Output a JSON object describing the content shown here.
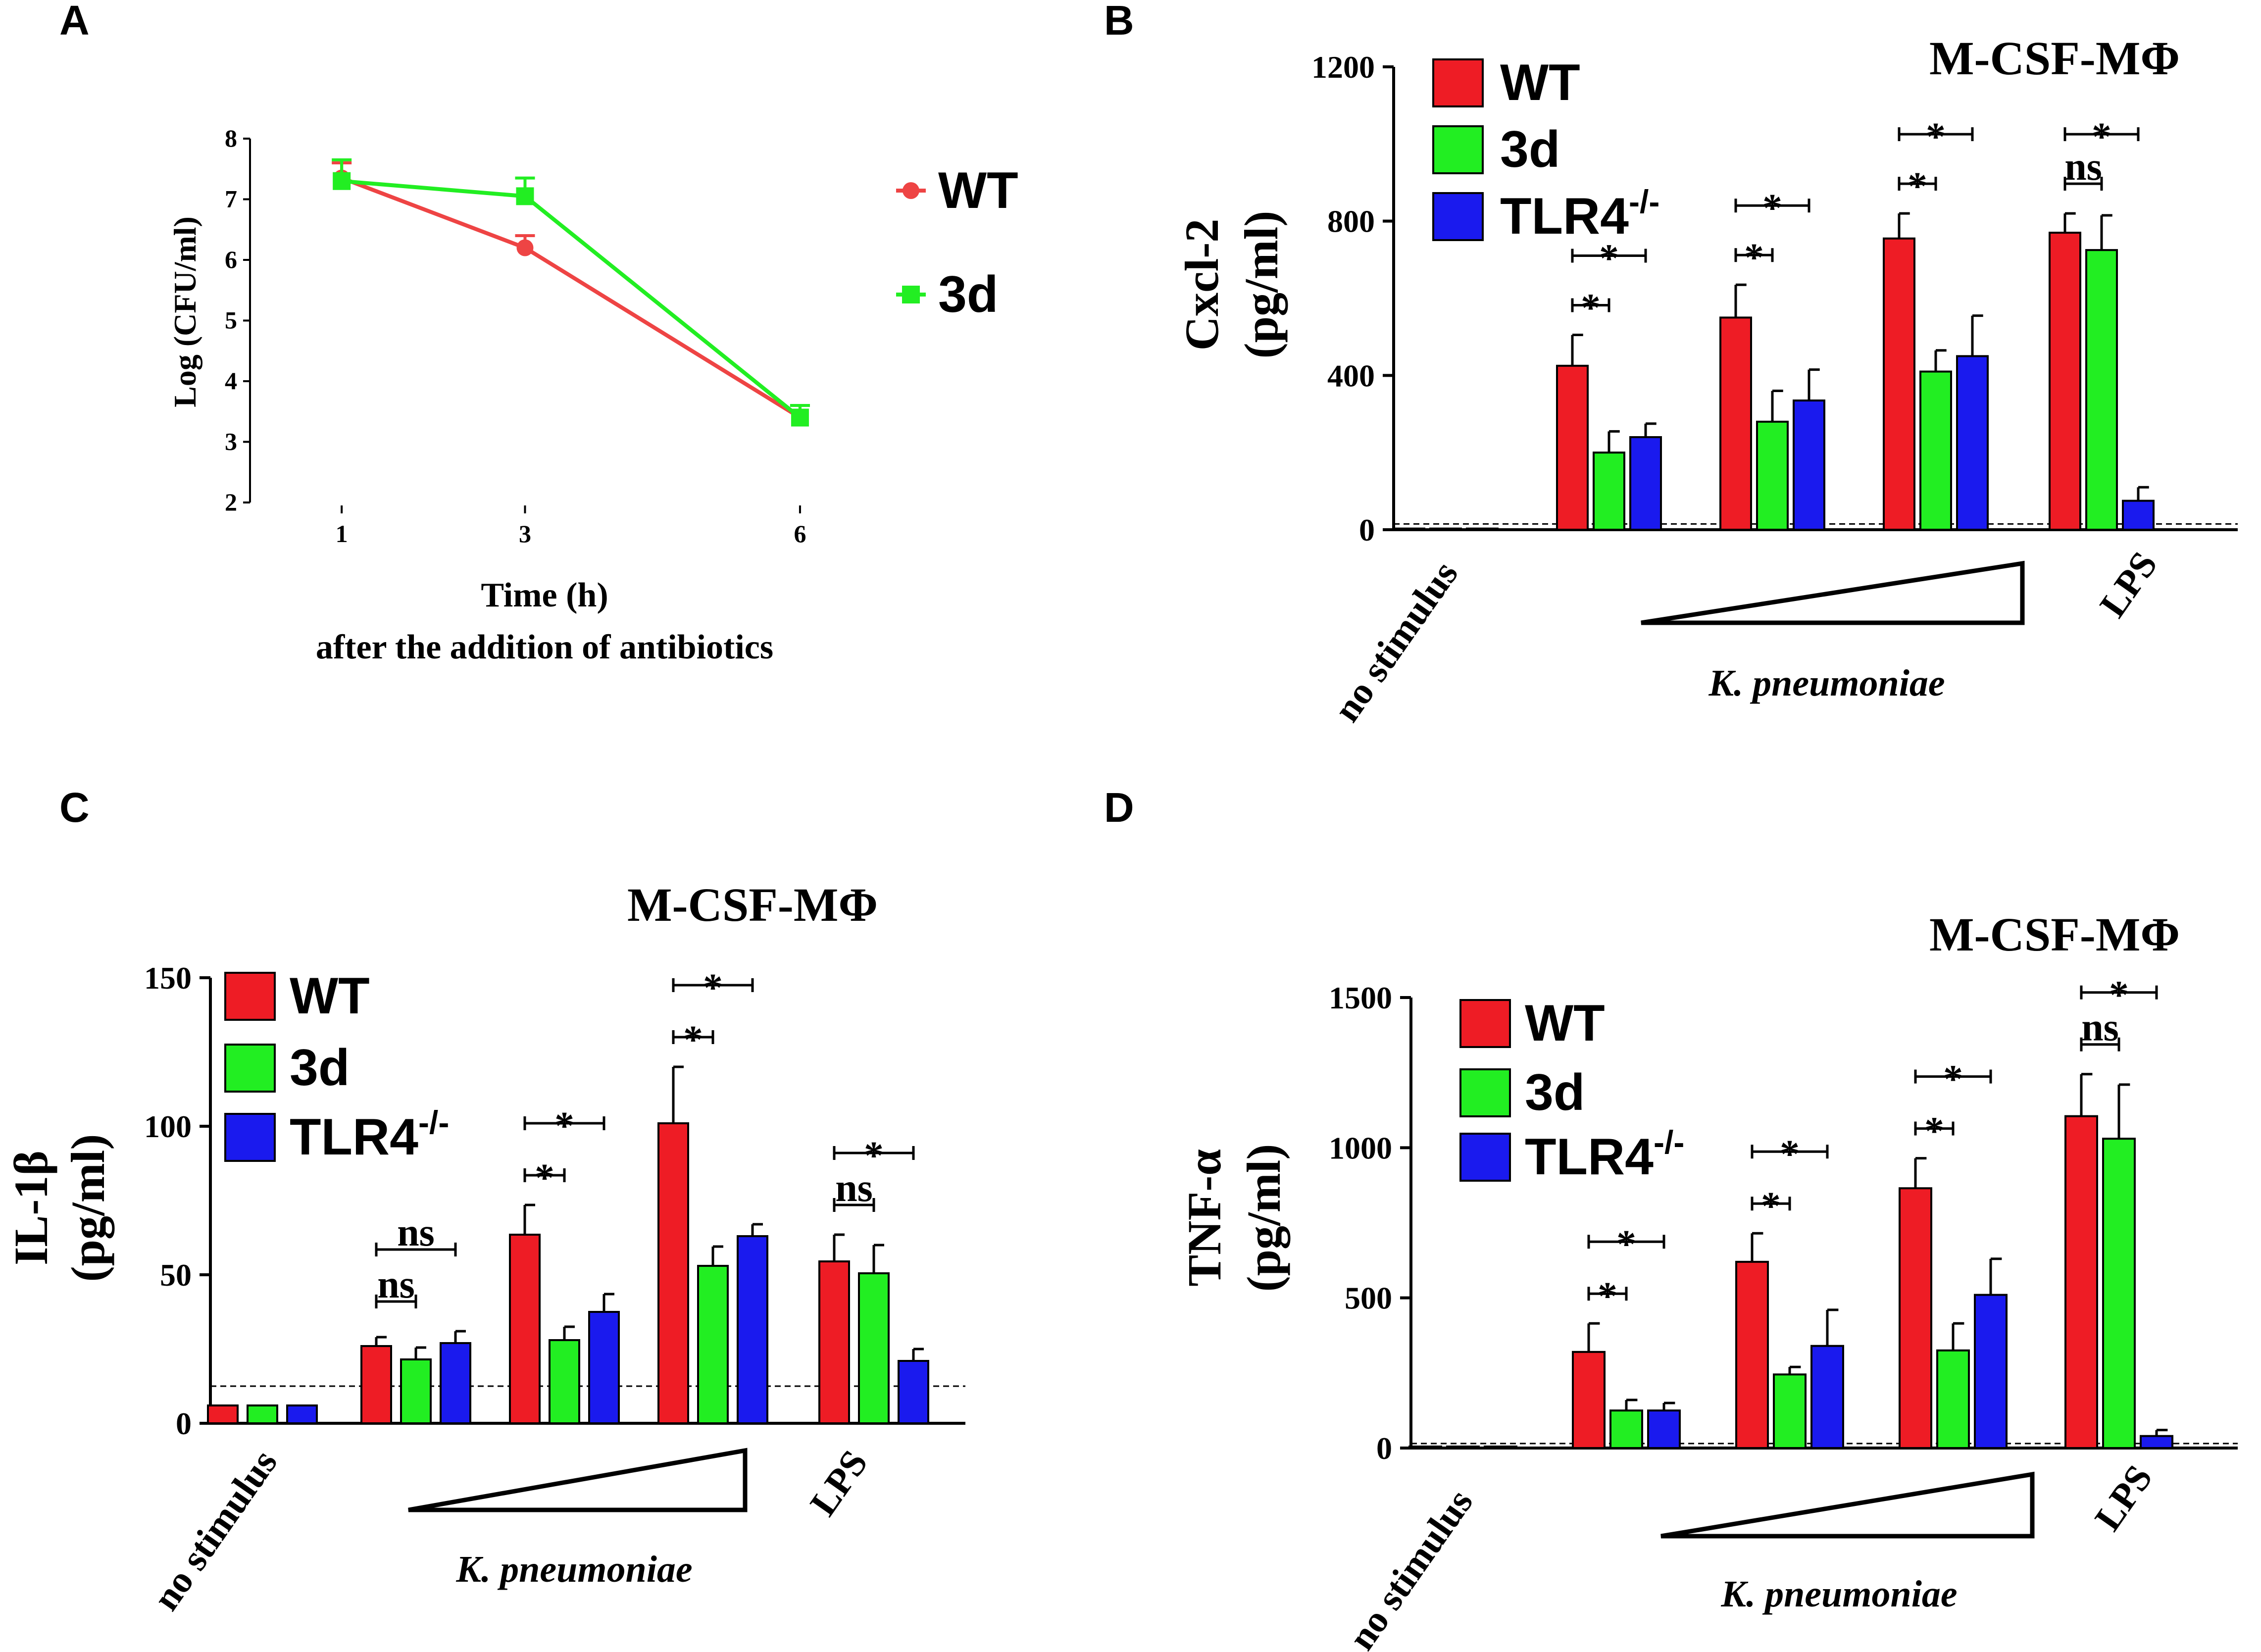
{
  "colors": {
    "WT": "#ee1c25",
    "3d": "#22ee22",
    "TLR4": "#1a1aee"
  },
  "panelA": {
    "letter": "A",
    "ylabel": "Log (CFU/ml)",
    "xlabel_line1": "Time (h)",
    "xlabel_line2": "after the addition of antibiotics",
    "legend_wt": "WT",
    "legend_3d": "3d",
    "chart_data": {
      "type": "line",
      "x": [
        1,
        3,
        6
      ],
      "xticks": [
        "1",
        "3",
        "6"
      ],
      "ylim": [
        2,
        8
      ],
      "yticks": [
        "2",
        "3",
        "4",
        "5",
        "6",
        "7",
        "8"
      ],
      "series": [
        {
          "name": "WT",
          "values": [
            7.35,
            6.2,
            3.4
          ],
          "errors": [
            0.25,
            0.2,
            0.2
          ]
        },
        {
          "name": "3d",
          "values": [
            7.3,
            7.05,
            3.4
          ],
          "errors": [
            0.35,
            0.3,
            0.2
          ]
        }
      ]
    }
  },
  "legendLabels": {
    "wt": "WT",
    "d3": "3d",
    "tlr4": "TLR4",
    "tlr4_sup": "-/-"
  },
  "bars": [
    {
      "letter": "B",
      "title": "M-CSF-MΦ",
      "ylabel1": "Cxcl-2",
      "ylabel2": "(pg/ml)",
      "cat_nostim": "no stimulus",
      "cat_lps": "LPS",
      "kp": "K. pneumoniae",
      "chart_data": {
        "type": "bar",
        "categories": [
          "no stimulus",
          "K. pneumoniae (low)",
          "K. pneumoniae (mid)",
          "K. pneumoniae (high)",
          "LPS"
        ],
        "ylim": [
          0,
          1200
        ],
        "yticks": [
          "0",
          "400",
          "800",
          "1200"
        ],
        "dashed_line": 15,
        "series": [
          {
            "name": "WT",
            "values": [
              3,
              425,
              550,
              755,
              770
            ],
            "errors": [
              0,
              80,
              85,
              65,
              50
            ]
          },
          {
            "name": "3d",
            "values": [
              3,
              200,
              280,
              410,
              725
            ],
            "errors": [
              0,
              55,
              80,
              55,
              90
            ]
          },
          {
            "name": "TLR4-/-",
            "values": [
              3,
              240,
              335,
              450,
              75
            ],
            "errors": [
              0,
              35,
              80,
              105,
              35
            ]
          }
        ],
        "comparisons": [
          {
            "group": 1,
            "vs": "3d",
            "label": "*"
          },
          {
            "group": 1,
            "vs": "TLR4-/-",
            "label": "*"
          },
          {
            "group": 2,
            "vs": "3d",
            "label": "*"
          },
          {
            "group": 2,
            "vs": "TLR4-/-",
            "label": "*"
          },
          {
            "group": 3,
            "vs": "3d",
            "label": "*"
          },
          {
            "group": 3,
            "vs": "TLR4-/-",
            "label": "*"
          },
          {
            "group": 4,
            "vs": "3d",
            "label": "ns"
          },
          {
            "group": 4,
            "vs": "TLR4-/-",
            "label": "*"
          }
        ]
      }
    },
    {
      "letter": "C",
      "title": "M-CSF-MΦ",
      "ylabel1": "IL-1β",
      "ylabel2": "(pg/ml)",
      "cat_nostim": "no stimulus",
      "cat_lps": "LPS",
      "kp": "K. pneumoniae",
      "chart_data": {
        "type": "bar",
        "categories": [
          "no stimulus",
          "K. pneumoniae (low)",
          "K. pneumoniae (mid)",
          "K. pneumoniae (high)",
          "LPS"
        ],
        "ylim": [
          0,
          150
        ],
        "yticks": [
          "0",
          "50",
          "100",
          "150"
        ],
        "dashed_line": 12.5,
        "series": [
          {
            "name": "WT",
            "values": [
              6,
              26,
              63.5,
              101,
              54.5
            ],
            "errors": [
              0,
              3,
              10,
              19,
              9
            ]
          },
          {
            "name": "3d",
            "values": [
              6,
              21.5,
              28,
              53,
              50.5
            ],
            "errors": [
              0,
              4,
              4.5,
              6.5,
              9.5
            ]
          },
          {
            "name": "TLR4-/-",
            "values": [
              6,
              27,
              37.5,
              63,
              21
            ],
            "errors": [
              0,
              4,
              6,
              4,
              4
            ]
          }
        ],
        "comparisons": [
          {
            "group": 1,
            "vs": "3d",
            "label": "ns"
          },
          {
            "group": 1,
            "vs": "TLR4-/-",
            "label": "ns"
          },
          {
            "group": 2,
            "vs": "3d",
            "label": "*"
          },
          {
            "group": 2,
            "vs": "TLR4-/-",
            "label": "*"
          },
          {
            "group": 3,
            "vs": "3d",
            "label": "*"
          },
          {
            "group": 3,
            "vs": "TLR4-/-",
            "label": "*"
          },
          {
            "group": 4,
            "vs": "3d",
            "label": "ns"
          },
          {
            "group": 4,
            "vs": "TLR4-/-",
            "label": "*"
          }
        ]
      }
    },
    {
      "letter": "D",
      "title": "M-CSF-MΦ",
      "ylabel1": "TNF-α",
      "ylabel2": "(pg/ml)",
      "cat_nostim": "no stimulus",
      "cat_lps": "LPS",
      "kp": "K. pneumoniae",
      "chart_data": {
        "type": "bar",
        "categories": [
          "no stimulus",
          "K. pneumoniae (low)",
          "K. pneumoniae (mid)",
          "K. pneumoniae (high)",
          "LPS"
        ],
        "ylim": [
          0,
          1500
        ],
        "yticks": [
          "0",
          "500",
          "1000",
          "1500"
        ],
        "dashed_line": 15,
        "series": [
          {
            "name": "WT",
            "values": [
              5,
              320,
              620,
              865,
              1105
            ],
            "errors": [
              0,
              95,
              95,
              100,
              140
            ]
          },
          {
            "name": "3d",
            "values": [
              5,
              125,
              245,
              325,
              1030
            ],
            "errors": [
              0,
              35,
              25,
              90,
              180
            ]
          },
          {
            "name": "TLR4-/-",
            "values": [
              5,
              125,
              340,
              510,
              40
            ],
            "errors": [
              0,
              25,
              120,
              120,
              20
            ]
          }
        ],
        "comparisons": [
          {
            "group": 1,
            "vs": "3d",
            "label": "*"
          },
          {
            "group": 1,
            "vs": "TLR4-/-",
            "label": "*"
          },
          {
            "group": 2,
            "vs": "3d",
            "label": "*"
          },
          {
            "group": 2,
            "vs": "TLR4-/-",
            "label": "*"
          },
          {
            "group": 3,
            "vs": "3d",
            "label": "*"
          },
          {
            "group": 3,
            "vs": "TLR4-/-",
            "label": "*"
          },
          {
            "group": 4,
            "vs": "3d",
            "label": "ns"
          },
          {
            "group": 4,
            "vs": "TLR4-/-",
            "label": "*"
          }
        ]
      }
    }
  ]
}
